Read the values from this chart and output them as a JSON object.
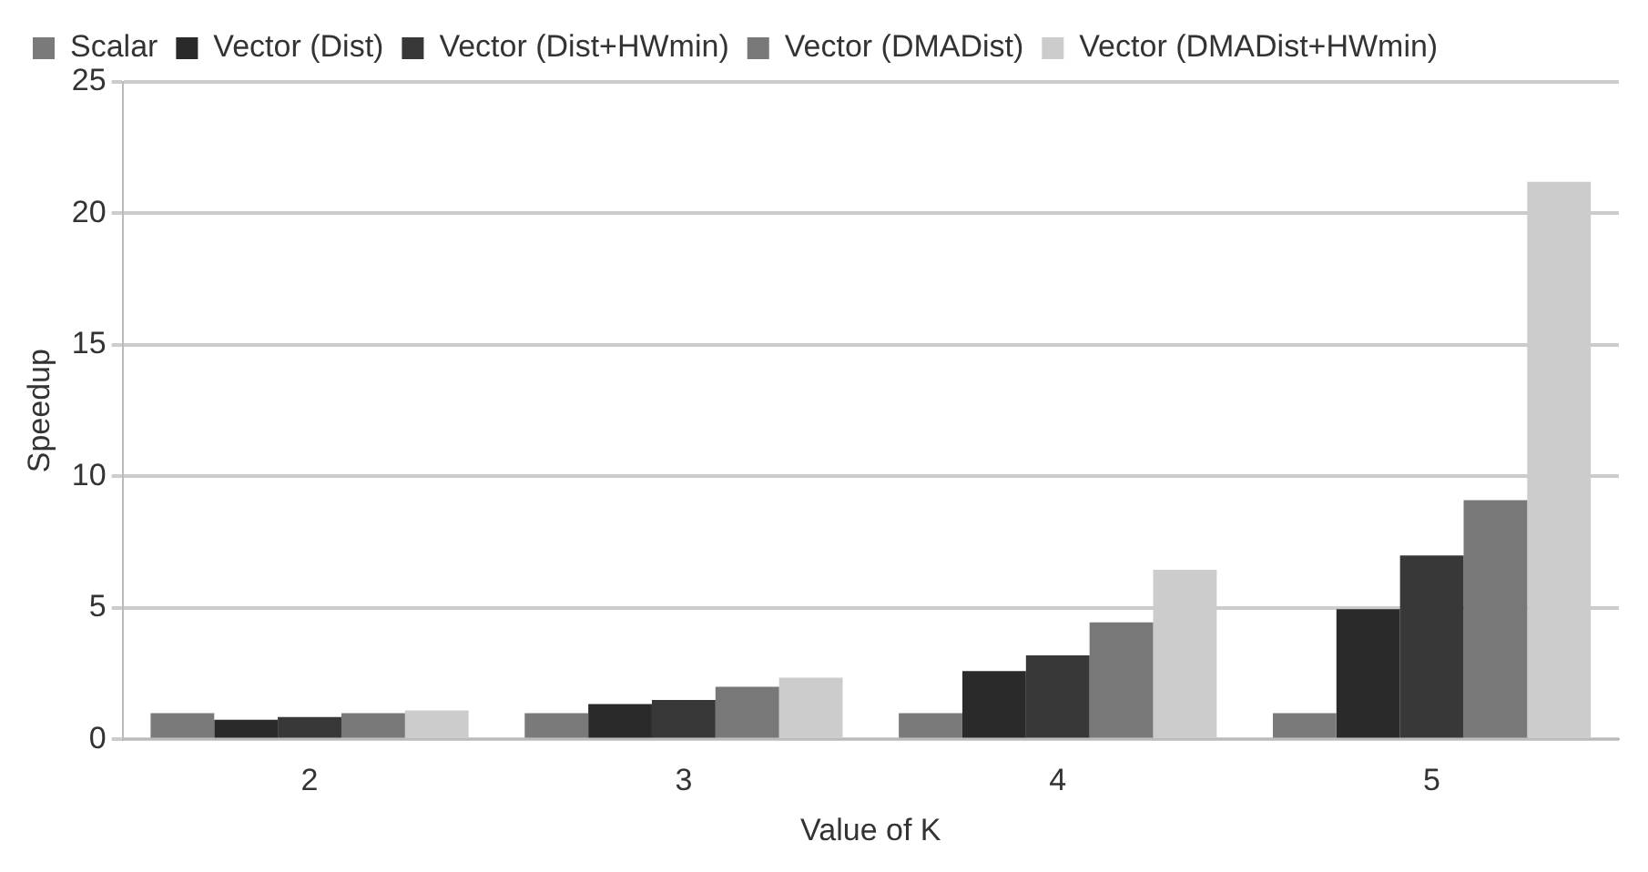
{
  "chart_data": {
    "type": "bar",
    "xlabel": "Value of K",
    "ylabel": "Speedup",
    "categories": [
      "2",
      "3",
      "4",
      "5"
    ],
    "series": [
      {
        "name": "Scalar",
        "color": "#7a7a7a",
        "values": [
          1.0,
          1.0,
          1.0,
          1.0
        ]
      },
      {
        "name": "Vector (Dist)",
        "color": "#2a2a2a",
        "values": [
          0.75,
          1.35,
          2.6,
          4.95
        ]
      },
      {
        "name": "Vector (Dist+HWmin)",
        "color": "#383838",
        "values": [
          0.85,
          1.5,
          3.2,
          7.0
        ]
      },
      {
        "name": "Vector (DMADist)",
        "color": "#787878",
        "values": [
          1.0,
          2.0,
          4.45,
          9.1
        ]
      },
      {
        "name": "Vector (DMADist+HWmin)",
        "color": "#cccccc",
        "values": [
          1.1,
          2.35,
          6.45,
          21.2
        ]
      }
    ],
    "ylim": [
      0,
      25
    ],
    "yticks": [
      0,
      5,
      10,
      15,
      20,
      25
    ],
    "grid": "y",
    "legend": "top"
  }
}
